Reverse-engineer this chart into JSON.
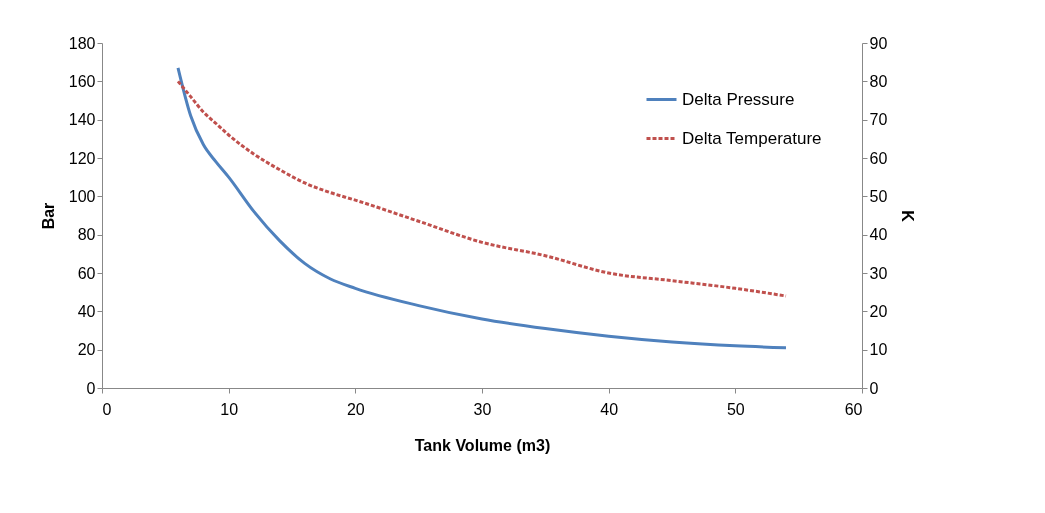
{
  "chart_data": {
    "type": "line",
    "xlabel": "Tank Volume (m3)",
    "ylabel": "Bar",
    "y2label": "K",
    "x": [
      6,
      7,
      8,
      9,
      10,
      12,
      14,
      16,
      18,
      20,
      25,
      30,
      35,
      40,
      45,
      50,
      54
    ],
    "xlim": [
      0,
      60
    ],
    "xticks": [
      0,
      10,
      20,
      30,
      40,
      50,
      60
    ],
    "ylim": [
      0,
      180
    ],
    "yticks": [
      0,
      20,
      40,
      60,
      80,
      100,
      120,
      140,
      160,
      180
    ],
    "y2lim": [
      0,
      90
    ],
    "y2ticks": [
      0,
      10,
      20,
      30,
      40,
      50,
      60,
      70,
      80,
      90
    ],
    "legend": "top right",
    "series": [
      {
        "name": "Delta Pressure",
        "color": "#4f81bd",
        "line_style": "solid",
        "values": [
          167,
          142,
          127,
          118,
          110,
          92,
          77,
          65,
          57,
          52,
          43,
          36,
          31,
          27,
          24,
          22,
          21
        ]
      },
      {
        "name": "Delta Temperature",
        "color": "#c0504d",
        "line_style": "dashed",
        "axis": "y2",
        "values": [
          80,
          76,
          72,
          69,
          66,
          61,
          57,
          53.5,
          51,
          49,
          43.5,
          38,
          34.5,
          30,
          28,
          26,
          24
        ]
      }
    ]
  }
}
